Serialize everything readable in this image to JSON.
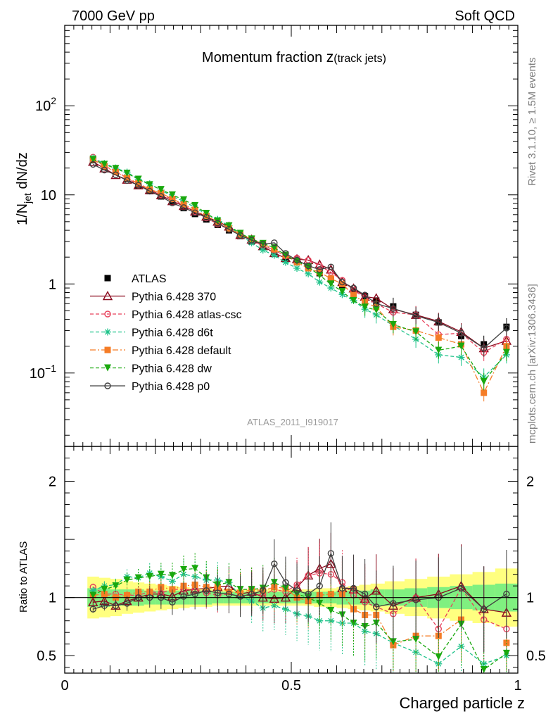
{
  "header": {
    "left": "7000 GeV pp",
    "right": "Soft QCD"
  },
  "side": {
    "rivet": "Rivet 3.1.10, ≥ 1.5M events",
    "mcplots": "mcplots.cern.ch [arXiv:1306.3436]"
  },
  "colors": {
    "atlas": "#000000",
    "p370": "#8b0a1e",
    "atlascsc": "#e8405a",
    "d6t": "#1fc38a",
    "default": "#f57c26",
    "dw": "#19a80e",
    "p0": "#404040",
    "band_outer": "#ffff80",
    "band_inner": "#80f080"
  },
  "chart_data": [
    {
      "type": "scatter",
      "title": "Momentum fraction z(track jets)",
      "title_main": "Momentum fraction ",
      "title_var": "z",
      "title_sub": "(track jets)",
      "ylabel": "1/N_jet dN/dz",
      "ylabel_pre": "1/N",
      "ylabel_sub": "jet",
      "ylabel_post": " dN/dz",
      "yscale": "log",
      "ylim": [
        0.015,
        800
      ],
      "xlim": [
        0,
        1
      ],
      "yticks": [
        "10^-1",
        "1",
        "10",
        "10^2"
      ],
      "watermark": "ATLAS_2011_I919017",
      "legend_position": "middle-left",
      "x": [
        0.0625,
        0.0875,
        0.1125,
        0.1375,
        0.1625,
        0.1875,
        0.2125,
        0.2375,
        0.2625,
        0.2875,
        0.3125,
        0.3375,
        0.3625,
        0.3875,
        0.4125,
        0.4375,
        0.4625,
        0.4875,
        0.5125,
        0.5375,
        0.5625,
        0.5875,
        0.6125,
        0.6375,
        0.6625,
        0.6875,
        0.725,
        0.775,
        0.825,
        0.875,
        0.925,
        0.975
      ],
      "series": [
        {
          "name": "ATLAS",
          "key": "atlas",
          "style": "data",
          "values": [
            24.5,
            20.5,
            18.0,
            15.2,
            12.8,
            11.0,
            9.6,
            8.4,
            7.1,
            6.1,
            5.3,
            4.6,
            4.0,
            3.45,
            3.0,
            2.65,
            2.25,
            1.95,
            1.75,
            1.55,
            1.32,
            1.12,
            0.97,
            0.83,
            0.73,
            0.65,
            0.56,
            0.45,
            0.37,
            0.26,
            0.21,
            0.33
          ]
        },
        {
          "name": "Pythia 6.428 370",
          "key": "p370",
          "style": "solid",
          "marker": "triangle",
          "values": [
            23.5,
            19.8,
            16.7,
            14.8,
            12.8,
            11.3,
            9.9,
            8.5,
            7.5,
            6.5,
            5.7,
            5.0,
            4.4,
            3.55,
            3.15,
            2.65,
            2.22,
            1.95,
            1.9,
            1.85,
            1.65,
            1.45,
            1.05,
            0.89,
            0.72,
            0.69,
            0.52,
            0.45,
            0.38,
            0.29,
            0.19,
            0.23
          ]
        },
        {
          "name": "Pythia 6.428 atlas-csc",
          "key": "atlascsc",
          "style": "dashed",
          "marker": "circle",
          "values": [
            26.5,
            21.0,
            18.5,
            15.5,
            13.0,
            11.5,
            10.0,
            9.0,
            7.6,
            6.5,
            5.5,
            4.7,
            4.1,
            3.5,
            3.1,
            2.7,
            2.4,
            2.05,
            1.95,
            1.85,
            1.6,
            1.35,
            1.1,
            0.85,
            0.7,
            0.6,
            0.48,
            0.45,
            0.27,
            0.28,
            0.17,
            0.24
          ]
        },
        {
          "name": "Pythia 6.428 d6t",
          "key": "d6t",
          "style": "dashed",
          "marker": "star",
          "values": [
            26.0,
            22.5,
            20.0,
            18.0,
            15.0,
            13.3,
            11.3,
            9.6,
            8.5,
            7.2,
            6.1,
            5.3,
            4.5,
            3.5,
            2.9,
            2.4,
            2.1,
            1.75,
            1.5,
            1.3,
            1.05,
            0.9,
            0.76,
            0.65,
            0.52,
            0.45,
            0.34,
            0.24,
            0.16,
            0.15,
            0.09,
            0.16
          ]
        },
        {
          "name": "Pythia 6.428 default",
          "key": "default",
          "style": "dashdot",
          "marker": "square",
          "values": [
            25.0,
            21.0,
            18.0,
            15.5,
            13.5,
            11.5,
            10.5,
            9.0,
            7.8,
            6.8,
            5.8,
            5.0,
            4.2,
            3.6,
            3.2,
            2.8,
            2.45,
            2.1,
            1.75,
            1.5,
            1.35,
            1.15,
            1.0,
            0.75,
            0.62,
            0.55,
            0.33,
            0.3,
            0.25,
            0.21,
            0.06,
            0.2
          ]
        },
        {
          "name": "Pythia 6.428 dw",
          "key": "dw",
          "style": "dashed",
          "marker": "triangledown",
          "values": [
            25.0,
            22.0,
            19.8,
            17.5,
            15.0,
            13.0,
            11.5,
            10.0,
            8.8,
            7.6,
            6.2,
            5.1,
            4.5,
            3.7,
            3.2,
            2.85,
            2.55,
            2.1,
            1.8,
            1.55,
            1.25,
            1.0,
            0.82,
            0.65,
            0.55,
            0.51,
            0.35,
            0.29,
            0.18,
            0.2,
            0.08,
            0.17
          ]
        },
        {
          "name": "Pythia 6.428 p0",
          "key": "p0",
          "style": "solid",
          "marker": "circle",
          "values": [
            22.0,
            19.0,
            16.8,
            14.5,
            12.8,
            11.0,
            9.6,
            8.1,
            7.2,
            6.3,
            5.6,
            4.8,
            4.1,
            3.5,
            3.1,
            2.8,
            2.9,
            2.2,
            1.85,
            1.6,
            1.45,
            1.55,
            1.05,
            0.9,
            0.75,
            0.6,
            0.53,
            0.44,
            0.37,
            0.28,
            0.19,
            0.32
          ]
        }
      ]
    },
    {
      "type": "scatter",
      "ylabel": "Ratio to ATLAS",
      "xlabel": "Charged particle z",
      "ylim": [
        0.35,
        2.3
      ],
      "xlim": [
        0,
        1
      ],
      "xticks": [
        "0",
        "0.5",
        "1"
      ],
      "yticks": [
        "0.5",
        "1",
        "2"
      ],
      "x": [
        0.0625,
        0.0875,
        0.1125,
        0.1375,
        0.1625,
        0.1875,
        0.2125,
        0.2375,
        0.2625,
        0.2875,
        0.3125,
        0.3375,
        0.3625,
        0.3875,
        0.4125,
        0.4375,
        0.4625,
        0.4875,
        0.5125,
        0.5375,
        0.5625,
        0.5875,
        0.6125,
        0.6375,
        0.6625,
        0.6875,
        0.725,
        0.775,
        0.825,
        0.875,
        0.925,
        0.975
      ],
      "band_inner": [
        0.08,
        0.08,
        0.07,
        0.07,
        0.07,
        0.06,
        0.06,
        0.06,
        0.06,
        0.06,
        0.06,
        0.05,
        0.05,
        0.05,
        0.05,
        0.05,
        0.05,
        0.05,
        0.05,
        0.05,
        0.05,
        0.05,
        0.06,
        0.06,
        0.06,
        0.07,
        0.07,
        0.08,
        0.09,
        0.1,
        0.11,
        0.12
      ],
      "band_outer": [
        0.18,
        0.17,
        0.16,
        0.14,
        0.13,
        0.12,
        0.11,
        0.1,
        0.09,
        0.08,
        0.08,
        0.07,
        0.07,
        0.07,
        0.07,
        0.07,
        0.07,
        0.07,
        0.07,
        0.07,
        0.08,
        0.08,
        0.09,
        0.1,
        0.11,
        0.12,
        0.14,
        0.16,
        0.18,
        0.2,
        0.22,
        0.25
      ],
      "series": [
        {
          "name": "Pythia 6.428 370",
          "key": "p370",
          "values": [
            0.96,
            0.97,
            0.93,
            0.97,
            1.0,
            1.03,
            1.03,
            1.01,
            1.06,
            1.07,
            1.08,
            1.09,
            1.1,
            1.03,
            1.05,
            1.0,
            0.99,
            1.0,
            1.09,
            1.19,
            1.25,
            1.29,
            1.08,
            1.07,
            0.99,
            1.06,
            0.93,
            1.0,
            1.03,
            1.1,
            0.9,
            0.87
          ]
        },
        {
          "name": "Pythia 6.428 atlas-csc",
          "key": "atlascsc",
          "values": [
            1.09,
            1.03,
            1.03,
            1.02,
            1.02,
            1.05,
            1.04,
            1.07,
            1.07,
            1.07,
            1.04,
            1.02,
            1.03,
            1.01,
            1.03,
            1.02,
            1.07,
            1.05,
            1.11,
            1.19,
            1.21,
            1.2,
            1.13,
            1.02,
            0.96,
            0.92,
            0.86,
            1.0,
            0.73,
            1.08,
            0.81,
            0.73
          ]
        },
        {
          "name": "Pythia 6.428 d6t",
          "key": "d6t",
          "values": [
            1.06,
            1.1,
            1.11,
            1.18,
            1.17,
            1.21,
            1.18,
            1.14,
            1.2,
            1.18,
            1.15,
            1.15,
            1.13,
            1.01,
            0.97,
            0.91,
            0.93,
            0.9,
            0.86,
            0.84,
            0.8,
            0.8,
            0.78,
            0.78,
            0.71,
            0.69,
            0.61,
            0.53,
            0.43,
            0.58,
            0.43,
            0.5
          ]
        },
        {
          "name": "Pythia 6.428 default",
          "key": "default",
          "values": [
            1.02,
            1.03,
            1.0,
            1.02,
            1.05,
            1.05,
            1.09,
            1.07,
            1.1,
            1.11,
            1.09,
            1.09,
            1.05,
            1.04,
            1.07,
            1.06,
            1.09,
            1.08,
            1.0,
            0.97,
            1.02,
            1.03,
            1.03,
            0.9,
            0.85,
            0.85,
            0.59,
            0.67,
            0.67,
            0.81,
            0.29,
            0.61
          ]
        },
        {
          "name": "Pythia 6.428 dw",
          "key": "dw",
          "values": [
            1.02,
            1.07,
            1.1,
            1.15,
            1.17,
            1.18,
            1.2,
            1.19,
            1.24,
            1.25,
            1.17,
            1.11,
            1.13,
            1.07,
            1.07,
            1.08,
            1.13,
            1.08,
            1.03,
            1.0,
            0.95,
            0.89,
            0.85,
            0.78,
            0.75,
            0.78,
            0.62,
            0.64,
            0.49,
            0.77,
            0.38,
            0.52
          ]
        },
        {
          "name": "Pythia 6.428 p0",
          "key": "p0",
          "values": [
            0.9,
            0.93,
            0.93,
            0.95,
            1.0,
            1.0,
            1.0,
            0.96,
            1.01,
            1.03,
            1.06,
            1.04,
            1.03,
            1.01,
            1.03,
            1.06,
            1.29,
            1.13,
            1.06,
            1.03,
            1.1,
            1.38,
            1.08,
            1.08,
            1.03,
            0.92,
            0.95,
            0.98,
            1.0,
            1.08,
            0.9,
            1.03
          ]
        }
      ]
    }
  ]
}
